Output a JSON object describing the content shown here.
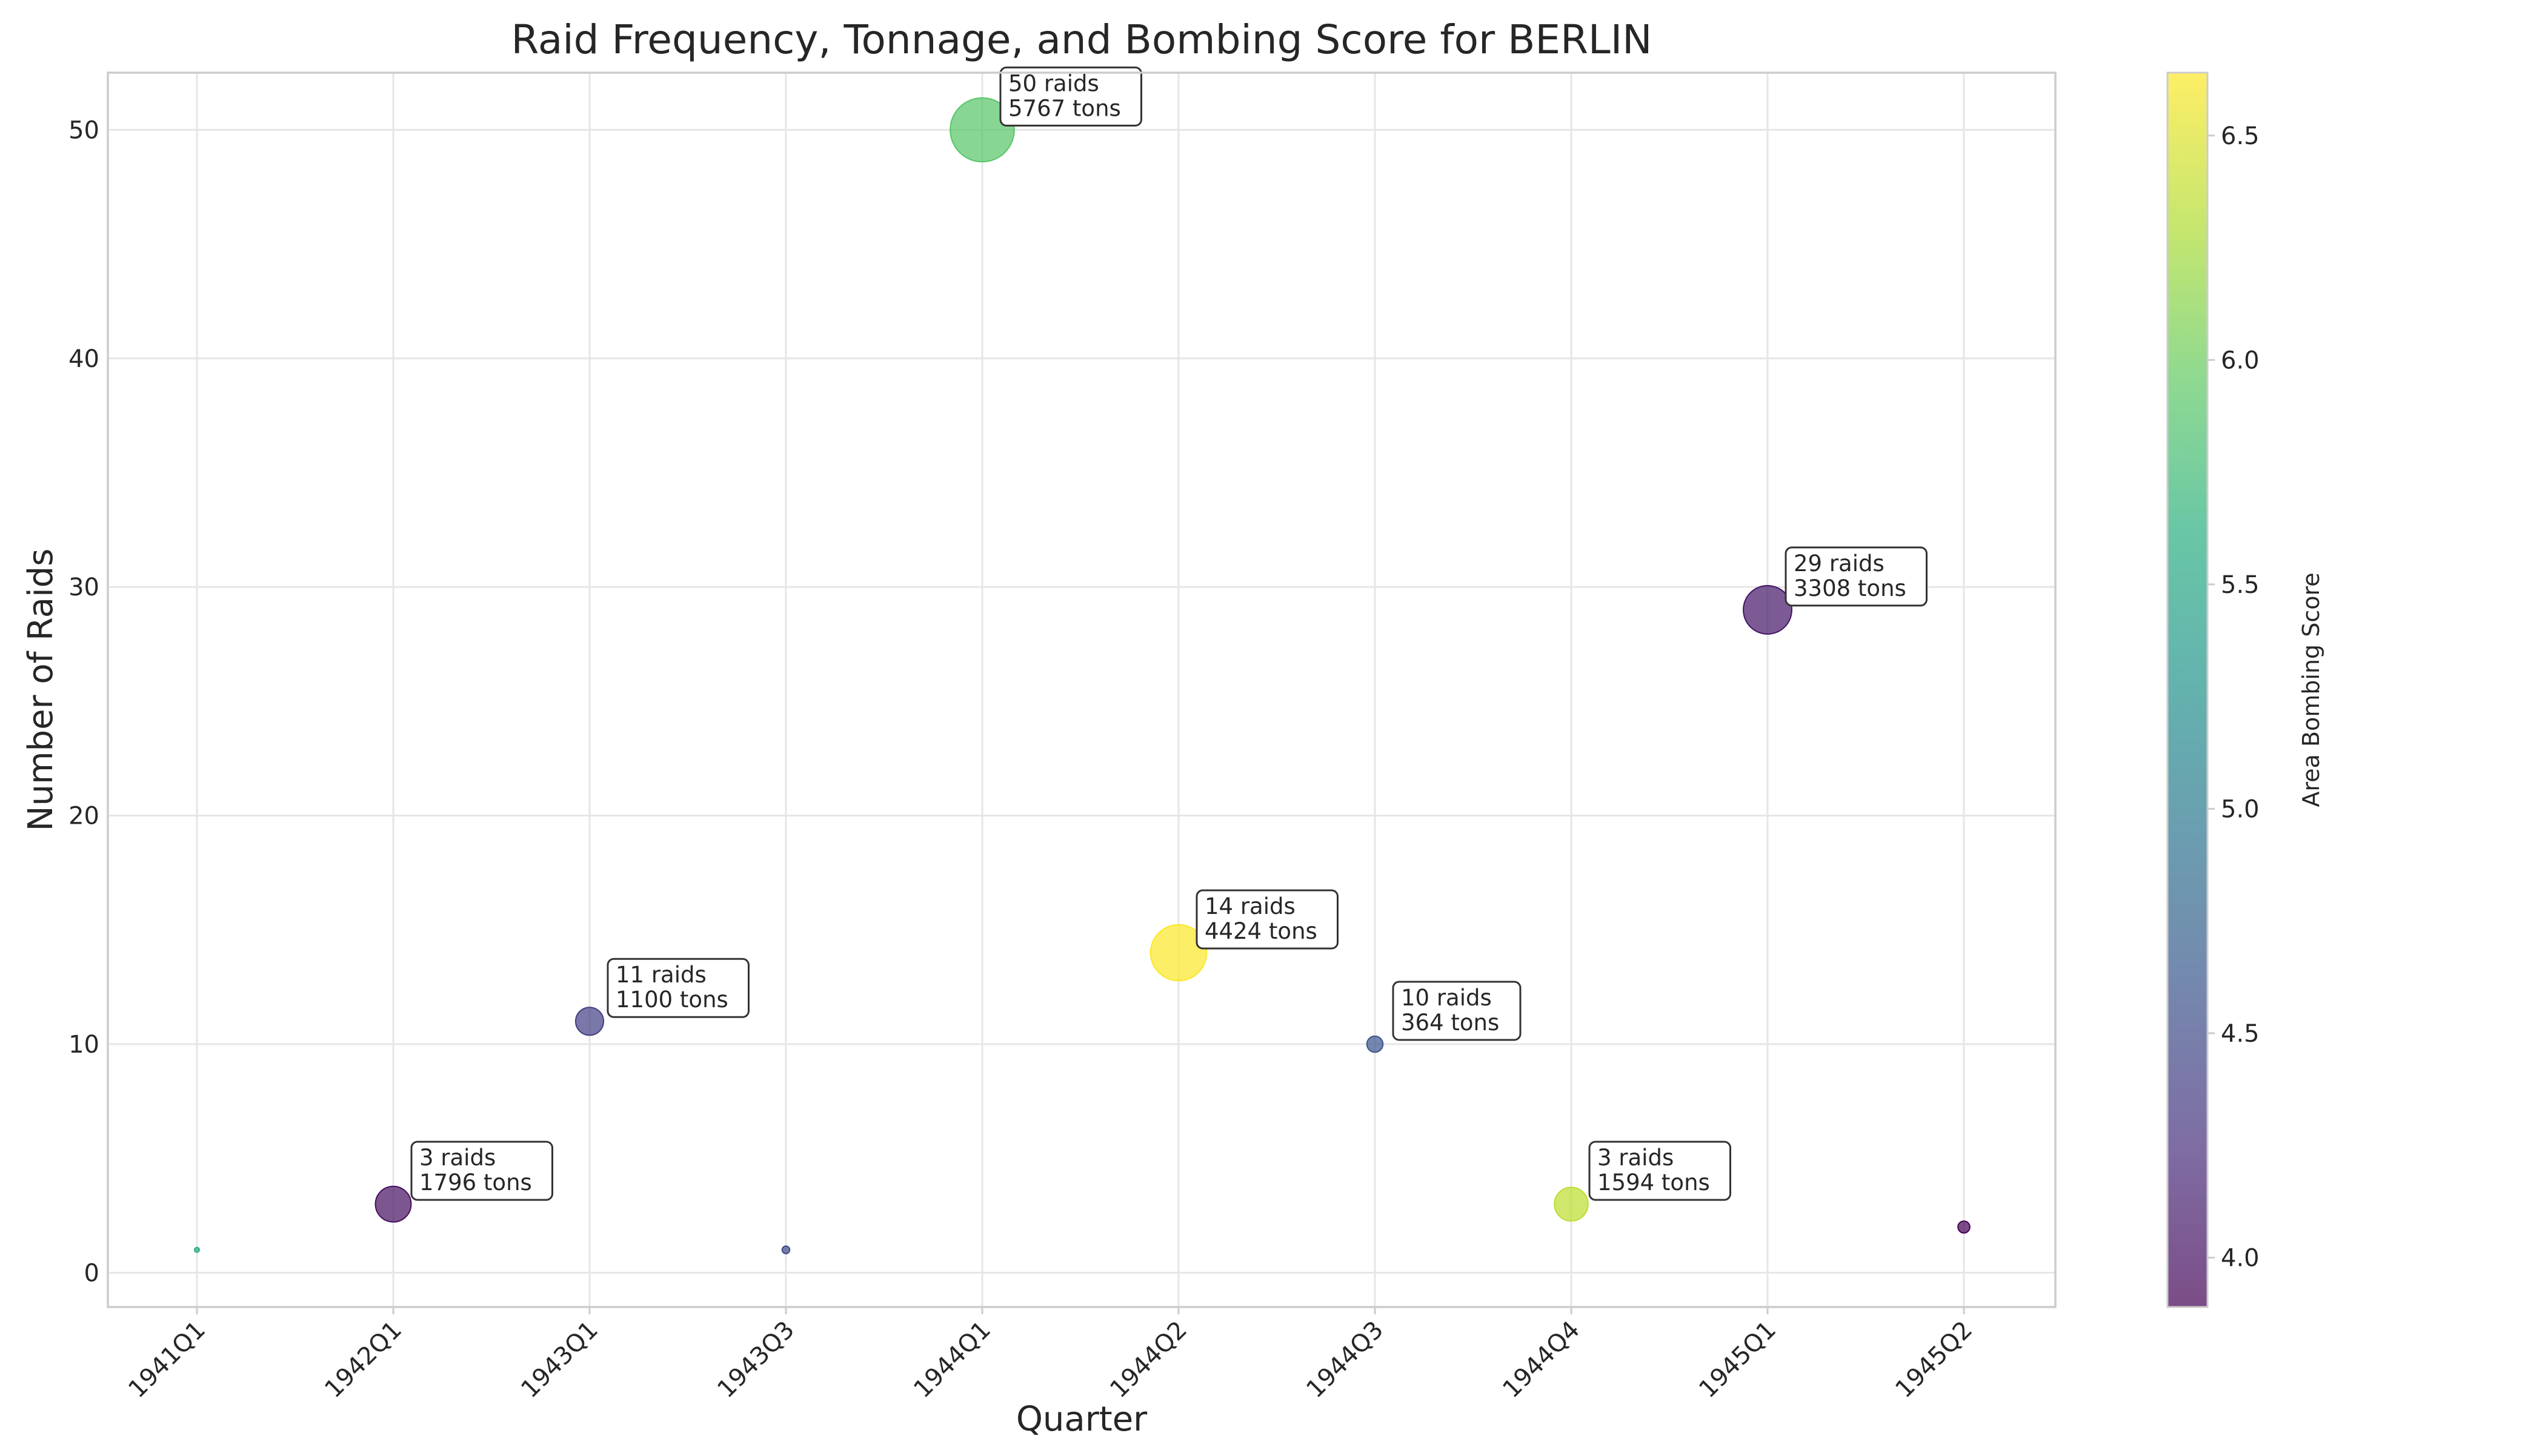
{
  "chart_data": {
    "type": "scatter",
    "title": "Raid Frequency, Tonnage, and Bombing Score for BERLIN",
    "xlabel": "Quarter",
    "ylabel": "Number of Raids",
    "categories": [
      "1941Q1",
      "1942Q1",
      "1943Q1",
      "1943Q3",
      "1944Q1",
      "1944Q2",
      "1944Q3",
      "1944Q4",
      "1945Q1",
      "1945Q2"
    ],
    "ylim": [
      -1.5,
      52.5
    ],
    "yticks": [
      0,
      10,
      20,
      30,
      40,
      50
    ],
    "grid": true,
    "points": [
      {
        "x": "1941Q1",
        "raids": 1,
        "tons": 12,
        "score": 5.6,
        "annotation": ""
      },
      {
        "x": "1942Q1",
        "raids": 3,
        "tons": 1796,
        "score": 4.0,
        "annotation": "3 raids\n1796 tons"
      },
      {
        "x": "1943Q1",
        "raids": 11,
        "tons": 1100,
        "score": 4.4,
        "annotation": "11 raids\n1100 tons"
      },
      {
        "x": "1943Q3",
        "raids": 1,
        "tons": 80,
        "score": 4.5,
        "annotation": ""
      },
      {
        "x": "1944Q1",
        "raids": 50,
        "tons": 5767,
        "score": 5.9,
        "annotation": "50 raids\n5767 tons"
      },
      {
        "x": "1944Q2",
        "raids": 14,
        "tons": 4424,
        "score": 6.63,
        "annotation": "14 raids\n4424 tons"
      },
      {
        "x": "1944Q3",
        "raids": 10,
        "tons": 364,
        "score": 4.6,
        "annotation": "10 raids\n364 tons"
      },
      {
        "x": "1944Q4",
        "raids": 3,
        "tons": 1594,
        "score": 6.35,
        "annotation": "3 raids\n1594 tons"
      },
      {
        "x": "1945Q1",
        "raids": 29,
        "tons": 3308,
        "score": 4.05,
        "annotation": "29 raids\n3308 tons"
      },
      {
        "x": "1945Q2",
        "raids": 2,
        "tons": 200,
        "score": 3.9,
        "annotation": ""
      }
    ],
    "colorbar": {
      "label": "Area Bombing Score",
      "colormap": "viridis",
      "range": [
        3.89,
        6.64
      ],
      "ticks": [
        4.0,
        4.5,
        5.0,
        5.5,
        6.0,
        6.5
      ],
      "tick_labels": [
        "4.0",
        "4.5",
        "5.0",
        "5.5",
        "6.0",
        "6.5"
      ]
    },
    "marker_alpha": 0.7
  }
}
